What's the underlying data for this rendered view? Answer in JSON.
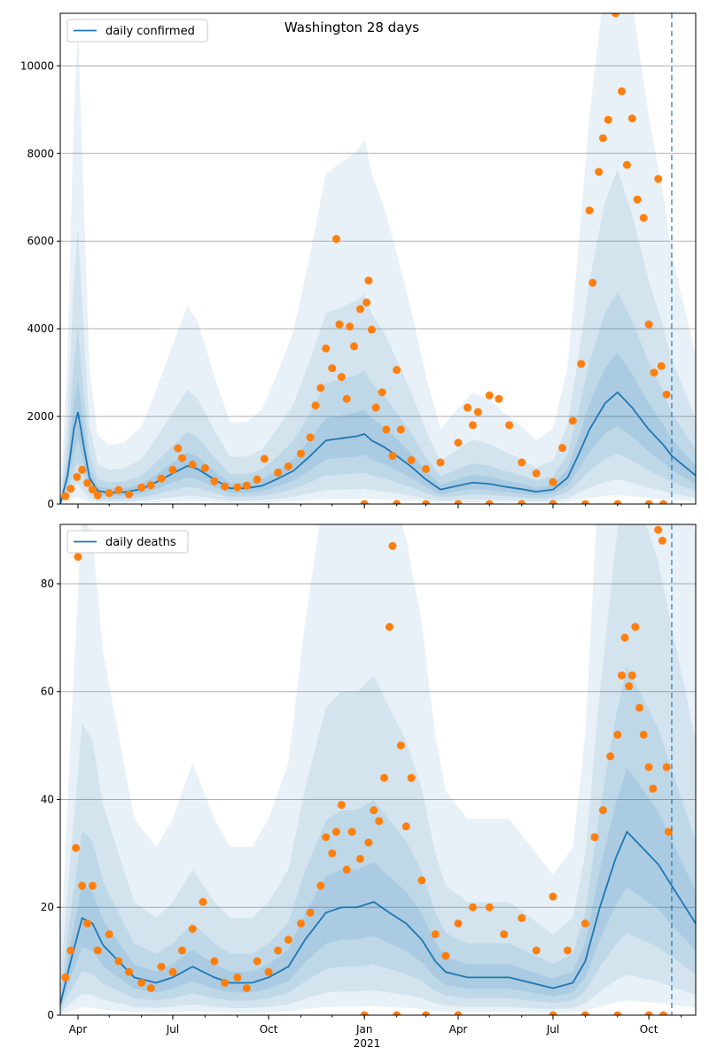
{
  "title": "Washington 28 days",
  "x_tick_year": "2021",
  "colors": {
    "model_line": "#1f77b4",
    "band": "#1f77b4",
    "observed_points": "#ff7f0e",
    "grid": "#b0b0b0",
    "today_line": "#1f77b4"
  },
  "chart_data": [
    {
      "type": "line",
      "name": "cases",
      "legend": "daily confirmed",
      "x_axis": "date",
      "x_range": [
        "2020-03-15",
        "2021-11-15"
      ],
      "x_ticks": [
        {
          "date": "2020-04-01",
          "label": "Apr"
        },
        {
          "date": "2020-07-01",
          "label": "Jul"
        },
        {
          "date": "2020-10-01",
          "label": "Oct"
        },
        {
          "date": "2021-01-01",
          "label": "Jan"
        },
        {
          "date": "2021-04-01",
          "label": "Apr"
        },
        {
          "date": "2021-07-01",
          "label": "Jul"
        },
        {
          "date": "2021-10-01",
          "label": "Oct"
        }
      ],
      "ylim": [
        0,
        11200
      ],
      "y_ticks": [
        0,
        2000,
        4000,
        6000,
        8000,
        10000
      ],
      "grid": "horizontal",
      "legend_position": "top-left",
      "forecast_date": "2021-10-23",
      "model_line": [
        [
          "2020-03-15",
          0
        ],
        [
          "2020-03-22",
          650
        ],
        [
          "2020-03-28",
          1700
        ],
        [
          "2020-04-01",
          2100
        ],
        [
          "2020-04-06",
          1400
        ],
        [
          "2020-04-12",
          600
        ],
        [
          "2020-04-20",
          300
        ],
        [
          "2020-05-01",
          260
        ],
        [
          "2020-05-15",
          270
        ],
        [
          "2020-06-01",
          340
        ],
        [
          "2020-06-15",
          500
        ],
        [
          "2020-07-01",
          700
        ],
        [
          "2020-07-15",
          870
        ],
        [
          "2020-07-25",
          800
        ],
        [
          "2020-08-10",
          560
        ],
        [
          "2020-08-25",
          360
        ],
        [
          "2020-09-10",
          360
        ],
        [
          "2020-09-25",
          420
        ],
        [
          "2020-10-10",
          580
        ],
        [
          "2020-10-25",
          760
        ],
        [
          "2020-11-10",
          1100
        ],
        [
          "2020-11-25",
          1450
        ],
        [
          "2020-12-10",
          1500
        ],
        [
          "2020-12-25",
          1550
        ],
        [
          "2021-01-01",
          1600
        ],
        [
          "2021-01-08",
          1450
        ],
        [
          "2021-01-20",
          1300
        ],
        [
          "2021-02-01",
          1100
        ],
        [
          "2021-02-15",
          850
        ],
        [
          "2021-03-01",
          560
        ],
        [
          "2021-03-15",
          330
        ],
        [
          "2021-04-01",
          420
        ],
        [
          "2021-04-15",
          490
        ],
        [
          "2021-05-01",
          460
        ],
        [
          "2021-05-15",
          400
        ],
        [
          "2021-06-01",
          340
        ],
        [
          "2021-06-15",
          280
        ],
        [
          "2021-07-01",
          330
        ],
        [
          "2021-07-15",
          600
        ],
        [
          "2021-07-25",
          1100
        ],
        [
          "2021-08-05",
          1700
        ],
        [
          "2021-08-20",
          2300
        ],
        [
          "2021-09-01",
          2550
        ],
        [
          "2021-09-15",
          2200
        ],
        [
          "2021-10-01",
          1700
        ],
        [
          "2021-10-15",
          1350
        ],
        [
          "2021-10-23",
          1100
        ],
        [
          "2021-11-15",
          650
        ]
      ],
      "observed": [
        [
          "2020-03-20",
          180
        ],
        [
          "2020-03-25",
          350
        ],
        [
          "2020-03-31",
          620
        ],
        [
          "2020-04-05",
          780
        ],
        [
          "2020-04-10",
          480
        ],
        [
          "2020-04-15",
          330
        ],
        [
          "2020-04-20",
          200
        ],
        [
          "2020-05-01",
          250
        ],
        [
          "2020-05-10",
          320
        ],
        [
          "2020-05-20",
          220
        ],
        [
          "2020-06-01",
          380
        ],
        [
          "2020-06-10",
          430
        ],
        [
          "2020-06-20",
          580
        ],
        [
          "2020-07-01",
          780
        ],
        [
          "2020-07-06",
          1270
        ],
        [
          "2020-07-10",
          1050
        ],
        [
          "2020-07-20",
          900
        ],
        [
          "2020-08-01",
          820
        ],
        [
          "2020-08-10",
          520
        ],
        [
          "2020-08-20",
          400
        ],
        [
          "2020-09-01",
          380
        ],
        [
          "2020-09-10",
          420
        ],
        [
          "2020-09-20",
          560
        ],
        [
          "2020-09-27",
          1030
        ],
        [
          "2020-10-10",
          720
        ],
        [
          "2020-10-20",
          860
        ],
        [
          "2020-11-01",
          1150
        ],
        [
          "2020-11-10",
          1520
        ],
        [
          "2020-11-15",
          2250
        ],
        [
          "2020-11-20",
          2650
        ],
        [
          "2020-11-25",
          3550
        ],
        [
          "2020-12-01",
          3100
        ],
        [
          "2020-12-05",
          6050
        ],
        [
          "2020-12-08",
          4100
        ],
        [
          "2020-12-10",
          2900
        ],
        [
          "2020-12-15",
          2400
        ],
        [
          "2020-12-18",
          4050
        ],
        [
          "2020-12-22",
          3600
        ],
        [
          "2020-12-28",
          4450
        ],
        [
          "2021-01-03",
          4600
        ],
        [
          "2021-01-05",
          5100
        ],
        [
          "2021-01-08",
          3980
        ],
        [
          "2021-01-12",
          2200
        ],
        [
          "2021-01-18",
          2550
        ],
        [
          "2021-01-22",
          1700
        ],
        [
          "2021-01-28",
          1100
        ],
        [
          "2021-02-01",
          3060
        ],
        [
          "2021-02-05",
          1700
        ],
        [
          "2021-02-15",
          1000
        ],
        [
          "2021-03-01",
          800
        ],
        [
          "2021-03-15",
          950
        ],
        [
          "2021-04-01",
          1400
        ],
        [
          "2021-04-10",
          2200
        ],
        [
          "2021-04-15",
          1800
        ],
        [
          "2021-04-20",
          2100
        ],
        [
          "2021-05-01",
          2480
        ],
        [
          "2021-05-10",
          2400
        ],
        [
          "2021-05-20",
          1800
        ],
        [
          "2021-06-01",
          950
        ],
        [
          "2021-06-15",
          700
        ],
        [
          "2021-07-01",
          500
        ],
        [
          "2021-07-10",
          1280
        ],
        [
          "2021-07-20",
          1900
        ],
        [
          "2021-07-28",
          3200
        ],
        [
          "2021-08-05",
          6700
        ],
        [
          "2021-08-08",
          5050
        ],
        [
          "2021-08-14",
          7580
        ],
        [
          "2021-08-18",
          8350
        ],
        [
          "2021-08-23",
          8770
        ],
        [
          "2021-08-30",
          11200
        ],
        [
          "2021-09-05",
          9420
        ],
        [
          "2021-09-10",
          7740
        ],
        [
          "2021-09-15",
          8800
        ],
        [
          "2021-09-20",
          6950
        ],
        [
          "2021-09-26",
          6530
        ],
        [
          "2021-10-01",
          4100
        ],
        [
          "2021-10-06",
          3000
        ],
        [
          "2021-10-10",
          7420
        ],
        [
          "2021-10-13",
          3150
        ],
        [
          "2021-10-18",
          2500
        ],
        [
          "2021-01-01",
          0
        ],
        [
          "2021-02-01",
          0
        ],
        [
          "2021-03-01",
          0
        ],
        [
          "2021-04-01",
          0
        ],
        [
          "2021-05-01",
          0
        ],
        [
          "2021-06-01",
          0
        ],
        [
          "2021-07-01",
          0
        ],
        [
          "2021-08-01",
          0
        ],
        [
          "2021-09-01",
          0
        ],
        [
          "2021-10-01",
          0
        ],
        [
          "2021-10-15",
          0
        ]
      ]
    },
    {
      "type": "line",
      "name": "deaths",
      "legend": "daily deaths",
      "x_axis": "date",
      "x_range": [
        "2020-03-15",
        "2021-11-15"
      ],
      "x_ticks": [
        {
          "date": "2020-04-01",
          "label": "Apr"
        },
        {
          "date": "2020-07-01",
          "label": "Jul"
        },
        {
          "date": "2020-10-01",
          "label": "Oct"
        },
        {
          "date": "2021-01-01",
          "label": "Jan"
        },
        {
          "date": "2021-04-01",
          "label": "Apr"
        },
        {
          "date": "2021-07-01",
          "label": "Jul"
        },
        {
          "date": "2021-10-01",
          "label": "Oct"
        }
      ],
      "ylim": [
        0,
        91
      ],
      "y_ticks": [
        0,
        20,
        40,
        60,
        80
      ],
      "grid": "horizontal",
      "legend_position": "top-left",
      "forecast_date": "2021-10-23",
      "model_line": [
        [
          "2020-03-15",
          2
        ],
        [
          "2020-03-25",
          10
        ],
        [
          "2020-04-05",
          18
        ],
        [
          "2020-04-15",
          17
        ],
        [
          "2020-04-25",
          13
        ],
        [
          "2020-05-10",
          10
        ],
        [
          "2020-05-25",
          7
        ],
        [
          "2020-06-15",
          6
        ],
        [
          "2020-07-01",
          7
        ],
        [
          "2020-07-20",
          9
        ],
        [
          "2020-08-10",
          7
        ],
        [
          "2020-08-25",
          6
        ],
        [
          "2020-09-15",
          6
        ],
        [
          "2020-10-01",
          7
        ],
        [
          "2020-10-20",
          9
        ],
        [
          "2020-11-05",
          14
        ],
        [
          "2020-11-25",
          19
        ],
        [
          "2020-12-10",
          20
        ],
        [
          "2020-12-25",
          20
        ],
        [
          "2021-01-10",
          21
        ],
        [
          "2021-01-25",
          19
        ],
        [
          "2021-02-10",
          17
        ],
        [
          "2021-02-25",
          14
        ],
        [
          "2021-03-10",
          10
        ],
        [
          "2021-03-20",
          8
        ],
        [
          "2021-04-10",
          7
        ],
        [
          "2021-05-01",
          7
        ],
        [
          "2021-05-20",
          7
        ],
        [
          "2021-06-10",
          6
        ],
        [
          "2021-07-01",
          5
        ],
        [
          "2021-07-20",
          6
        ],
        [
          "2021-08-01",
          10
        ],
        [
          "2021-08-15",
          20
        ],
        [
          "2021-08-30",
          29
        ],
        [
          "2021-09-10",
          34
        ],
        [
          "2021-09-25",
          31
        ],
        [
          "2021-10-10",
          28
        ],
        [
          "2021-10-23",
          24
        ],
        [
          "2021-11-15",
          17
        ]
      ],
      "observed": [
        [
          "2020-03-20",
          7
        ],
        [
          "2020-03-25",
          12
        ],
        [
          "2020-03-30",
          31
        ],
        [
          "2020-04-01",
          85
        ],
        [
          "2020-04-05",
          24
        ],
        [
          "2020-04-10",
          17
        ],
        [
          "2020-04-15",
          24
        ],
        [
          "2020-04-20",
          12
        ],
        [
          "2020-05-01",
          15
        ],
        [
          "2020-05-10",
          10
        ],
        [
          "2020-05-20",
          8
        ],
        [
          "2020-06-01",
          6
        ],
        [
          "2020-06-10",
          5
        ],
        [
          "2020-06-20",
          9
        ],
        [
          "2020-07-01",
          8
        ],
        [
          "2020-07-10",
          12
        ],
        [
          "2020-07-20",
          16
        ],
        [
          "2020-07-30",
          21
        ],
        [
          "2020-08-10",
          10
        ],
        [
          "2020-08-20",
          6
        ],
        [
          "2020-09-01",
          7
        ],
        [
          "2020-09-10",
          5
        ],
        [
          "2020-09-20",
          10
        ],
        [
          "2020-10-01",
          8
        ],
        [
          "2020-10-10",
          12
        ],
        [
          "2020-10-20",
          14
        ],
        [
          "2020-11-01",
          17
        ],
        [
          "2020-11-10",
          19
        ],
        [
          "2020-11-20",
          24
        ],
        [
          "2020-11-25",
          33
        ],
        [
          "2020-12-01",
          30
        ],
        [
          "2020-12-05",
          34
        ],
        [
          "2020-12-10",
          39
        ],
        [
          "2020-12-15",
          27
        ],
        [
          "2020-12-20",
          34
        ],
        [
          "2020-12-28",
          29
        ],
        [
          "2021-01-05",
          32
        ],
        [
          "2021-01-10",
          38
        ],
        [
          "2021-01-15",
          36
        ],
        [
          "2021-01-20",
          44
        ],
        [
          "2021-01-25",
          72
        ],
        [
          "2021-01-28",
          87
        ],
        [
          "2021-02-05",
          50
        ],
        [
          "2021-02-10",
          35
        ],
        [
          "2021-02-15",
          44
        ],
        [
          "2021-02-25",
          25
        ],
        [
          "2021-03-10",
          15
        ],
        [
          "2021-03-20",
          11
        ],
        [
          "2021-04-01",
          17
        ],
        [
          "2021-04-15",
          20
        ],
        [
          "2021-05-01",
          20
        ],
        [
          "2021-05-15",
          15
        ],
        [
          "2021-06-01",
          18
        ],
        [
          "2021-06-15",
          12
        ],
        [
          "2021-07-01",
          22
        ],
        [
          "2021-07-15",
          12
        ],
        [
          "2021-08-01",
          17
        ],
        [
          "2021-08-10",
          33
        ],
        [
          "2021-08-18",
          38
        ],
        [
          "2021-08-25",
          48
        ],
        [
          "2021-09-01",
          52
        ],
        [
          "2021-09-05",
          63
        ],
        [
          "2021-09-08",
          70
        ],
        [
          "2021-09-12",
          61
        ],
        [
          "2021-09-15",
          63
        ],
        [
          "2021-09-18",
          72
        ],
        [
          "2021-09-22",
          57
        ],
        [
          "2021-09-26",
          52
        ],
        [
          "2021-10-01",
          46
        ],
        [
          "2021-10-05",
          42
        ],
        [
          "2021-10-10",
          90
        ],
        [
          "2021-10-14",
          88
        ],
        [
          "2021-10-18",
          46
        ],
        [
          "2021-10-20",
          34
        ],
        [
          "2021-01-01",
          0
        ],
        [
          "2021-02-01",
          0
        ],
        [
          "2021-03-01",
          0
        ],
        [
          "2021-04-01",
          0
        ],
        [
          "2021-07-01",
          0
        ],
        [
          "2021-08-01",
          0
        ],
        [
          "2021-09-01",
          0
        ],
        [
          "2021-10-01",
          0
        ],
        [
          "2021-10-15",
          0
        ]
      ]
    }
  ]
}
